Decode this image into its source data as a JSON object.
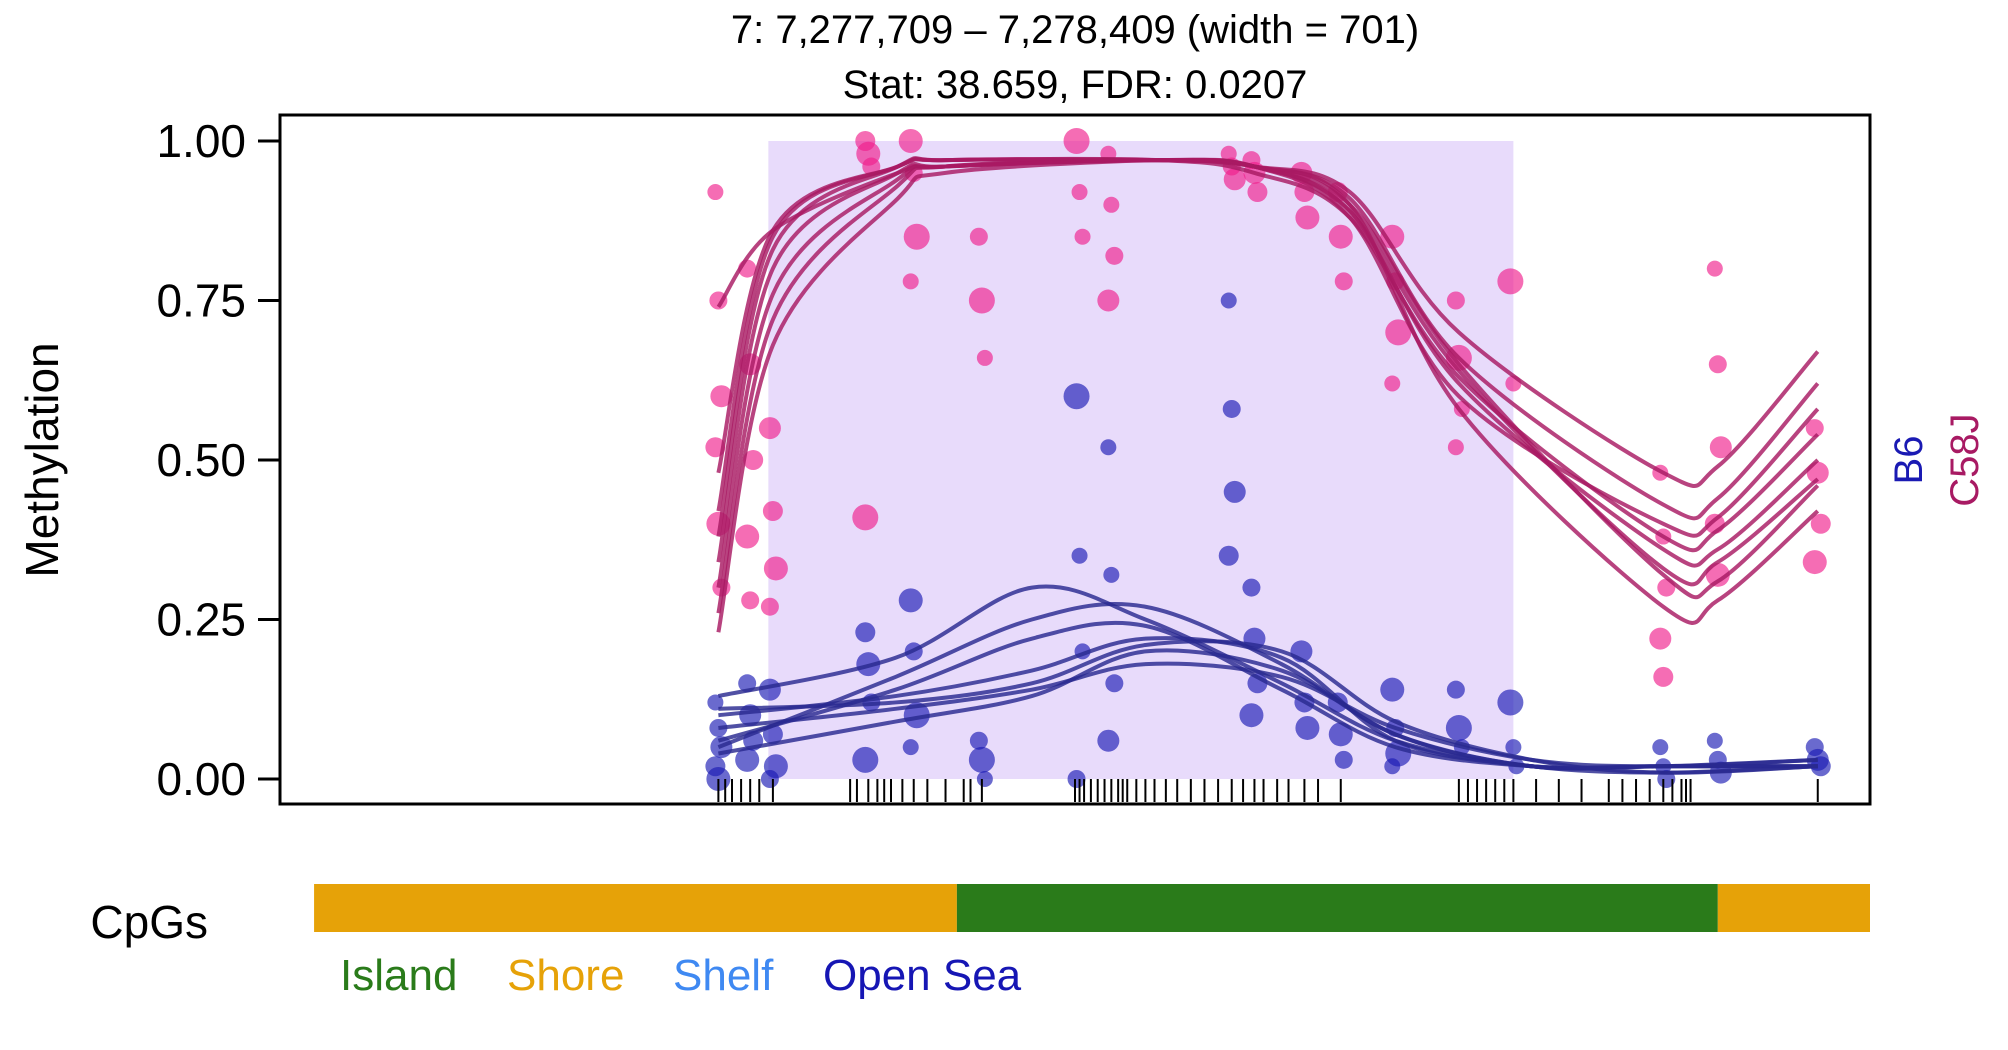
{
  "chart_data": {
    "type": "scatter",
    "title": "7: 7,277,709 – 7,278,409 (width = 701)",
    "subtitle": "Stat: 38.659, FDR: 0.0207",
    "ylabel": "Methylation",
    "xlabel": "",
    "xlim": [
      7277709,
      7278409
    ],
    "ylim": [
      0,
      1
    ],
    "y_ticks": [
      "0.00",
      "0.25",
      "0.50",
      "0.75",
      "1.00"
    ],
    "y_tick_values": [
      0,
      0.25,
      0.5,
      0.75,
      1.0
    ],
    "grid": false,
    "legend": "right",
    "dmr_region": {
      "x_start": 7277924,
      "x_end": 7278252,
      "color": "#E8DBFB"
    },
    "series": [
      {
        "name": "B6",
        "color": "#1A1AB3",
        "line_color": "#2A2A90"
      },
      {
        "name": "C58J",
        "color": "#F01E8C",
        "line_color": "#A81A63"
      }
    ],
    "smoothed_curves": {
      "C58J": [
        {
          "x": [
            7277902,
            7277926,
            7277981,
            7278002,
            7278096,
            7278138,
            7278180,
            7278228,
            7278318,
            7278342,
            7278386
          ],
          "y": [
            0.23,
            0.68,
            0.91,
            0.95,
            0.97,
            0.96,
            0.9,
            0.65,
            0.32,
            0.31,
            0.46
          ]
        },
        {
          "x": [
            7277902,
            7277926,
            7277981,
            7278002,
            7278096,
            7278138,
            7278180,
            7278228,
            7278318,
            7278342,
            7278386
          ],
          "y": [
            0.26,
            0.72,
            0.93,
            0.96,
            0.97,
            0.96,
            0.89,
            0.62,
            0.36,
            0.36,
            0.5
          ]
        },
        {
          "x": [
            7277902,
            7277926,
            7277981,
            7278002,
            7278096,
            7278138,
            7278180,
            7278228,
            7278318,
            7278342,
            7278386
          ],
          "y": [
            0.3,
            0.76,
            0.94,
            0.96,
            0.97,
            0.96,
            0.9,
            0.58,
            0.27,
            0.28,
            0.42
          ]
        },
        {
          "x": [
            7277902,
            7277926,
            7277981,
            7278002,
            7278096,
            7278138,
            7278180,
            7278228,
            7278318,
            7278342,
            7278386
          ],
          "y": [
            0.34,
            0.8,
            0.95,
            0.96,
            0.97,
            0.96,
            0.88,
            0.6,
            0.4,
            0.41,
            0.58
          ]
        },
        {
          "x": [
            7277902,
            7277926,
            7277981,
            7278002,
            7278096,
            7278138,
            7278180,
            7278228,
            7278318,
            7278342,
            7278386
          ],
          "y": [
            0.38,
            0.83,
            0.96,
            0.97,
            0.97,
            0.96,
            0.91,
            0.66,
            0.43,
            0.44,
            0.62
          ]
        },
        {
          "x": [
            7277902,
            7277926,
            7277981,
            7278002,
            7278096,
            7278138,
            7278180,
            7278228,
            7278318,
            7278342,
            7278386
          ],
          "y": [
            0.42,
            0.85,
            0.96,
            0.97,
            0.97,
            0.95,
            0.88,
            0.63,
            0.38,
            0.39,
            0.54
          ]
        },
        {
          "x": [
            7277902,
            7277926,
            7277981,
            7278002,
            7278096,
            7278138,
            7278180,
            7278228,
            7278318,
            7278342,
            7278386
          ],
          "y": [
            0.48,
            0.86,
            0.96,
            0.97,
            0.97,
            0.96,
            0.92,
            0.7,
            0.48,
            0.49,
            0.67
          ]
        },
        {
          "x": [
            7277902,
            7277926,
            7277981,
            7278002,
            7278096,
            7278138,
            7278180,
            7278228,
            7278318,
            7278342,
            7278386
          ],
          "y": [
            0.74,
            0.86,
            0.95,
            0.96,
            0.97,
            0.96,
            0.89,
            0.64,
            0.33,
            0.34,
            0.47
          ]
        }
      ],
      "B6": [
        {
          "x": [
            7277902,
            7277980,
            7278040,
            7278090,
            7278150,
            7278200,
            7278260,
            7278318,
            7278386
          ],
          "y": [
            0.13,
            0.19,
            0.3,
            0.25,
            0.15,
            0.06,
            0.02,
            0.02,
            0.03
          ]
        },
        {
          "x": [
            7277902,
            7277980,
            7278040,
            7278090,
            7278150,
            7278200,
            7278260,
            7278318,
            7278386
          ],
          "y": [
            0.05,
            0.16,
            0.25,
            0.27,
            0.18,
            0.07,
            0.02,
            0.02,
            0.02
          ]
        },
        {
          "x": [
            7277902,
            7277980,
            7278040,
            7278090,
            7278150,
            7278200,
            7278260,
            7278318,
            7278386
          ],
          "y": [
            0.1,
            0.13,
            0.17,
            0.22,
            0.19,
            0.06,
            0.02,
            0.01,
            0.02
          ]
        },
        {
          "x": [
            7277902,
            7277980,
            7278040,
            7278090,
            7278150,
            7278200,
            7278260,
            7278318,
            7278386
          ],
          "y": [
            0.04,
            0.09,
            0.13,
            0.2,
            0.17,
            0.07,
            0.02,
            0.02,
            0.02
          ]
        },
        {
          "x": [
            7277902,
            7277980,
            7278040,
            7278090,
            7278150,
            7278200,
            7278260,
            7278318,
            7278386
          ],
          "y": [
            0.08,
            0.11,
            0.14,
            0.18,
            0.16,
            0.08,
            0.03,
            0.02,
            0.03
          ]
        },
        {
          "x": [
            7277902,
            7277980,
            7278040,
            7278090,
            7278150,
            7278200,
            7278260,
            7278318,
            7278386
          ],
          "y": [
            0.06,
            0.14,
            0.22,
            0.24,
            0.14,
            0.05,
            0.02,
            0.02,
            0.02
          ]
        },
        {
          "x": [
            7277902,
            7277980,
            7278040,
            7278090,
            7278150,
            7278200,
            7278260,
            7278318,
            7278386
          ],
          "y": [
            0.11,
            0.12,
            0.15,
            0.21,
            0.2,
            0.09,
            0.03,
            0.01,
            0.02
          ]
        }
      ]
    },
    "cpg_sites": [
      7277902,
      7277905,
      7277908,
      7277912,
      7277916,
      7277920,
      7277926,
      7277960,
      7277963,
      7277968,
      7277972,
      7277975,
      7277978,
      7277983,
      7277988,
      7277994,
      7278002,
      7278010,
      7278013,
      7278018,
      7278059,
      7278061,
      7278063,
      7278066,
      7278069,
      7278072,
      7278075,
      7278078,
      7278080,
      7278082,
      7278086,
      7278090,
      7278094,
      7278099,
      7278104,
      7278110,
      7278116,
      7278122,
      7278128,
      7278133,
      7278138,
      7278142,
      7278148,
      7278153,
      7278160,
      7278166,
      7278176,
      7278228,
      7278232,
      7278236,
      7278240,
      7278244,
      7278248,
      7278252,
      7278262,
      7278272,
      7278282,
      7278294,
      7278300,
      7278306,
      7278312,
      7278318,
      7278322,
      7278326,
      7278328,
      7278330,
      7278386
    ],
    "data_by_site": [
      {
        "x": 7277902,
        "C58J": [
          0.92,
          0.75,
          0.6,
          0.52,
          0.4,
          0.3
        ],
        "B6": [
          0.12,
          0.08,
          0.05,
          0.02,
          0.0
        ]
      },
      {
        "x": 7277916,
        "C58J": [
          0.8,
          0.65,
          0.5,
          0.38,
          0.28
        ],
        "B6": [
          0.15,
          0.1,
          0.06,
          0.03
        ]
      },
      {
        "x": 7277926,
        "C58J": [
          0.55,
          0.42,
          0.33,
          0.27
        ],
        "B6": [
          0.14,
          0.07,
          0.02,
          0.0
        ]
      },
      {
        "x": 7277968,
        "C58J": [
          1.0,
          0.98,
          0.96,
          0.41
        ],
        "B6": [
          0.23,
          0.18,
          0.12,
          0.03
        ]
      },
      {
        "x": 7277988,
        "C58J": [
          1.0,
          0.95,
          0.85,
          0.78
        ],
        "B6": [
          0.28,
          0.2,
          0.1,
          0.05
        ]
      },
      {
        "x": 7278018,
        "C58J": [
          0.85,
          0.75,
          0.66
        ],
        "B6": [
          0.06,
          0.03,
          0.0
        ]
      },
      {
        "x": 7278061,
        "C58J": [
          1.0,
          0.92,
          0.85
        ],
        "B6": [
          0.6,
          0.35,
          0.2,
          0.0
        ]
      },
      {
        "x": 7278075,
        "C58J": [
          0.98,
          0.9,
          0.82,
          0.75
        ],
        "B6": [
          0.52,
          0.32,
          0.15,
          0.06
        ]
      },
      {
        "x": 7278128,
        "C58J": [
          0.98,
          0.96,
          0.94
        ],
        "B6": [
          0.75,
          0.58,
          0.45,
          0.35
        ]
      },
      {
        "x": 7278138,
        "C58J": [
          0.97,
          0.95,
          0.92
        ],
        "B6": [
          0.3,
          0.22,
          0.15,
          0.1
        ]
      },
      {
        "x": 7278160,
        "C58J": [
          0.95,
          0.92,
          0.88
        ],
        "B6": [
          0.2,
          0.12,
          0.08
        ]
      },
      {
        "x": 7278176,
        "C58J": [
          0.92,
          0.85,
          0.78
        ],
        "B6": [
          0.12,
          0.07,
          0.03
        ]
      },
      {
        "x": 7278200,
        "C58J": [
          0.85,
          0.78,
          0.7,
          0.62
        ],
        "B6": [
          0.14,
          0.08,
          0.04,
          0.02
        ]
      },
      {
        "x": 7278228,
        "C58J": [
          0.75,
          0.66,
          0.58,
          0.52
        ],
        "B6": [
          0.14,
          0.08,
          0.05
        ]
      },
      {
        "x": 7278252,
        "C58J": [
          0.78,
          0.62
        ],
        "B6": [
          0.12,
          0.05,
          0.02
        ]
      },
      {
        "x": 7278318,
        "C58J": [
          0.48,
          0.38,
          0.3,
          0.22,
          0.16
        ],
        "B6": [
          0.05,
          0.02,
          0.0
        ]
      },
      {
        "x": 7278342,
        "C58J": [
          0.8,
          0.65,
          0.52,
          0.4,
          0.32
        ],
        "B6": [
          0.06,
          0.03,
          0.01
        ]
      },
      {
        "x": 7278386,
        "C58J": [
          0.55,
          0.48,
          0.4,
          0.34
        ],
        "B6": [
          0.05,
          0.03,
          0.02
        ]
      }
    ],
    "annotation_track": {
      "label": "CpGs",
      "segments": [
        {
          "type": "Shore",
          "x_start": 7277724,
          "x_end": 7278007
        },
        {
          "type": "Island",
          "x_start": 7278007,
          "x_end": 7278342
        },
        {
          "type": "Shore",
          "x_start": 7278342,
          "x_end": 7278409
        }
      ],
      "legend": [
        {
          "label": "Island",
          "color": "#2A7B1A"
        },
        {
          "label": "Shore",
          "color": "#E6A208"
        },
        {
          "label": "Shelf",
          "color": "#3F89F2"
        },
        {
          "label": "Open Sea",
          "color": "#1616B4"
        }
      ]
    }
  }
}
